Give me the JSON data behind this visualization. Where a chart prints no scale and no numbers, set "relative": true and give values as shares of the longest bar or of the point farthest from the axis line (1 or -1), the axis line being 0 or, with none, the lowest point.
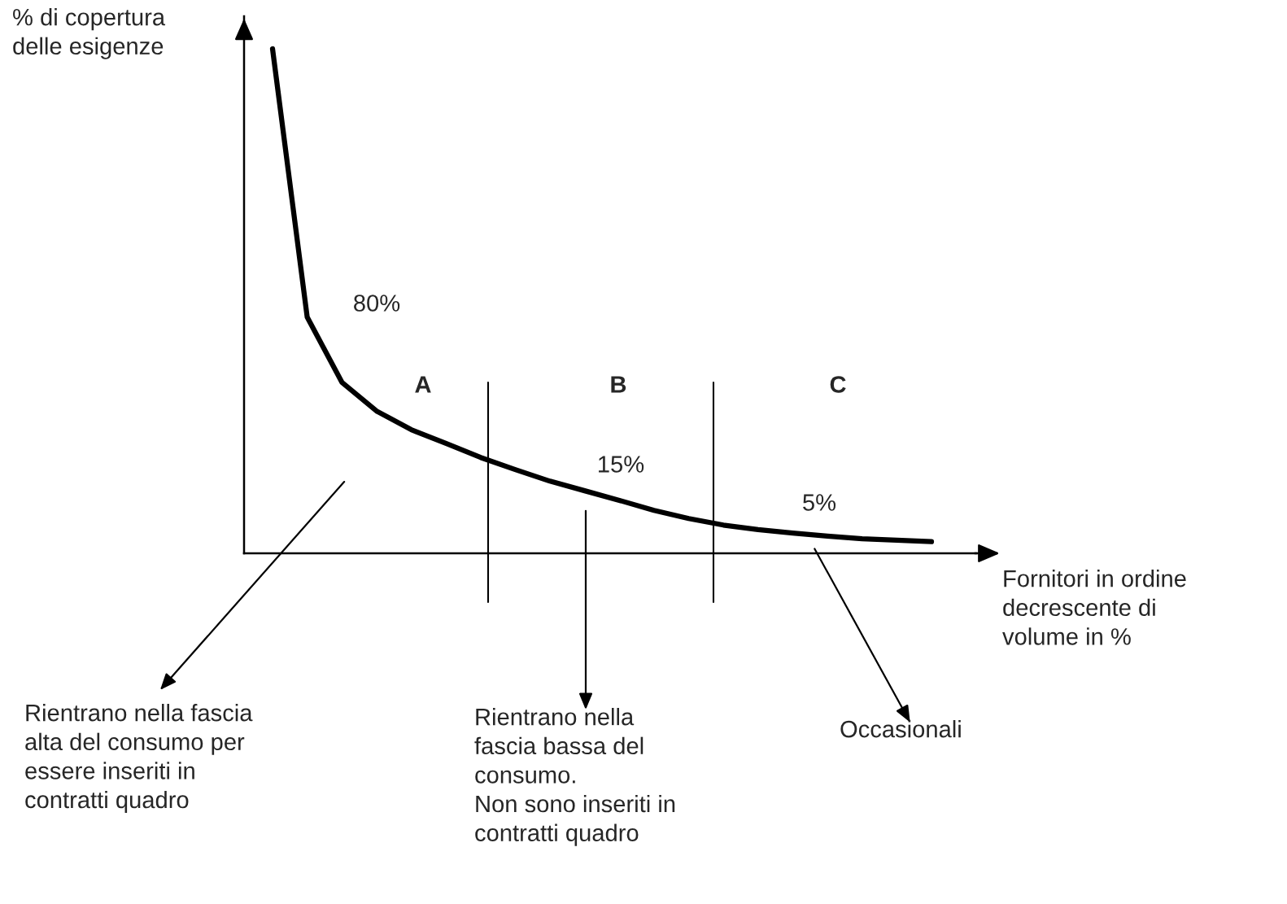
{
  "chart_data": {
    "type": "line",
    "relative": true,
    "xlabel": "Fornitori in ordine\ndecrescente di\nvolume in %",
    "ylabel": "% di copertura\ndelle esigenze",
    "categories": [
      null,
      null,
      null,
      null,
      null,
      null,
      null,
      null,
      null,
      null,
      null,
      null,
      null,
      null,
      null,
      null,
      null,
      null,
      null,
      null
    ],
    "series": [
      {
        "color": "#000000",
        "values": [
          1,
          0.468,
          0.339,
          0.282,
          0.245,
          0.218,
          0.19,
          0.166,
          0.143,
          0.124,
          0.105,
          0.085,
          0.069,
          0.056,
          0.047,
          0.04,
          0.034,
          0.029,
          0.026,
          0.023
        ]
      }
    ],
    "annotations": [
      "80%",
      "A",
      "B",
      "C",
      "15%",
      "5%",
      "Rientrano nella fascia\nalta del consumo per\nessere inseriti in\ncontratti quadro",
      "Rientrano nella\nfascia bassa del\nconsumo.\nNon sono inseriti in\ncontratti quadro",
      "Occasionali"
    ]
  }
}
